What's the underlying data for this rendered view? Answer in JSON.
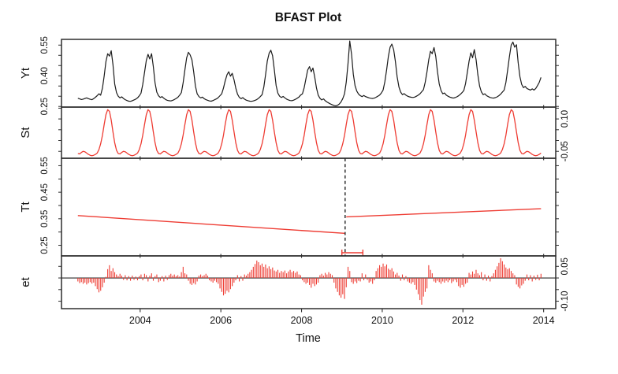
{
  "chart_data": {
    "type": "line",
    "title": "BFAST Plot",
    "xlabel": "Time",
    "x_ticks": [
      2004,
      2006,
      2008,
      2010,
      2012,
      2014
    ],
    "xlim": [
      2002.05,
      2014.3
    ],
    "x_start": 2002.4565,
    "samples_per_year": 23,
    "n_points": 265,
    "colors": {
      "observed": "#1b1b1b",
      "seasonal": "#ee3c33",
      "trend": "#ee3c33",
      "remainder": "#ee3c33",
      "frame": "#2d2d2d",
      "break_line": "#222222",
      "ci_bracket": "#ee3c33",
      "text": "#111111"
    },
    "panels": [
      {
        "id": "Yt",
        "label": "Yt",
        "series": "observed",
        "ylim": [
          0.247,
          0.578
        ],
        "tick_labels": [
          0.25,
          0.4,
          0.55
        ],
        "minor_tick_step": 0.05,
        "label_side": "left"
      },
      {
        "id": "St",
        "label": "St",
        "series": "seasonal",
        "ylim": [
          -0.082,
          0.155
        ],
        "tick_labels": [
          -0.05,
          0.1
        ],
        "minor_tick_step": 0.05,
        "label_side": "right"
      },
      {
        "id": "Tt",
        "label": "Tt",
        "series": "trend",
        "ylim": [
          0.21,
          0.578
        ],
        "tick_labels": [
          0.25,
          0.35,
          0.45,
          0.55
        ],
        "minor_tick_step": 0.05,
        "label_side": "left",
        "breakpoint": 2009.08,
        "break_ci": [
          2009.0,
          2009.52
        ]
      },
      {
        "id": "et",
        "label": "et",
        "series": "remainder",
        "ylim": [
          -0.132,
          0.095
        ],
        "tick_labels": [
          -0.1,
          0.05
        ],
        "minor_tick_step": 0.05,
        "label_side": "right",
        "zero_line": true
      }
    ],
    "trend_segments": [
      {
        "t0": 2002.4565,
        "v0": 0.362,
        "t1": 2009.065,
        "v1": 0.295
      },
      {
        "t0": 2009.108,
        "v0": 0.357,
        "t1": 2013.935,
        "v1": 0.388
      }
    ],
    "seasonal_phase_offset": 10,
    "seasonal_cycle_x1000": [
      -15,
      25,
      75,
      120,
      143,
      135,
      95,
      40,
      -10,
      -45,
      -60,
      -62,
      -55,
      -50,
      -52,
      -58,
      -64,
      -68,
      -70,
      -68,
      -64,
      -58,
      -42
    ],
    "observed_x1000": [
      290,
      287,
      284,
      286,
      289,
      292,
      288,
      285,
      283,
      288,
      295,
      303,
      312,
      305,
      340,
      400,
      470,
      508,
      496,
      522,
      455,
      360,
      318,
      300,
      292,
      297,
      289,
      283,
      279,
      276,
      275,
      278,
      282,
      286,
      292,
      302,
      315,
      358,
      418,
      475,
      505,
      482,
      508,
      445,
      365,
      320,
      302,
      294,
      298,
      290,
      284,
      280,
      278,
      277,
      280,
      284,
      289,
      295,
      305,
      318,
      365,
      430,
      488,
      515,
      502,
      478,
      420,
      350,
      312,
      298,
      292,
      296,
      288,
      283,
      280,
      277,
      276,
      279,
      283,
      287,
      293,
      303,
      312,
      340,
      375,
      405,
      420,
      398,
      412,
      380,
      340,
      310,
      295,
      288,
      293,
      286,
      281,
      278,
      276,
      275,
      277,
      280,
      284,
      290,
      298,
      308,
      345,
      405,
      472,
      510,
      525,
      498,
      430,
      352,
      315,
      300,
      294,
      299,
      292,
      286,
      282,
      279,
      278,
      281,
      285,
      290,
      296,
      306,
      312,
      342,
      385,
      428,
      445,
      420,
      438,
      395,
      340,
      305,
      290,
      282,
      287,
      278,
      272,
      267,
      262,
      258,
      255,
      253,
      256,
      262,
      272,
      288,
      312,
      370,
      460,
      570,
      505,
      408,
      352,
      325,
      310,
      303,
      298,
      304,
      298,
      295,
      292,
      290,
      289,
      291,
      295,
      300,
      306,
      316,
      330,
      370,
      430,
      495,
      540,
      555,
      528,
      470,
      395,
      345,
      320,
      308,
      313,
      305,
      300,
      297,
      295,
      294,
      296,
      300,
      305,
      312,
      322,
      332,
      368,
      420,
      478,
      520,
      508,
      538,
      495,
      420,
      360,
      328,
      312,
      316,
      306,
      300,
      296,
      293,
      291,
      293,
      297,
      302,
      309,
      318,
      328,
      362,
      415,
      472,
      512,
      488,
      528,
      478,
      405,
      350,
      322,
      308,
      312,
      303,
      298,
      294,
      292,
      291,
      293,
      297,
      303,
      310,
      320,
      330,
      368,
      428,
      492,
      550,
      565,
      540,
      552,
      462,
      395,
      358,
      342,
      348,
      338,
      334,
      330,
      336,
      330,
      338,
      352,
      368,
      392
    ],
    "remainder_x1000": [
      -15,
      -22,
      -18,
      -25,
      -20,
      -28,
      -22,
      -18,
      -24,
      -20,
      -35,
      -48,
      -62,
      -55,
      -40,
      -20,
      5,
      38,
      55,
      30,
      42,
      25,
      15,
      8,
      18,
      10,
      -8,
      12,
      -10,
      8,
      -12,
      10,
      -8,
      6,
      -10,
      8,
      15,
      -10,
      18,
      12,
      -15,
      10,
      20,
      -12,
      8,
      15,
      -18,
      -12,
      8,
      -15,
      10,
      -8,
      12,
      18,
      10,
      15,
      8,
      12,
      6,
      25,
      48,
      20,
      15,
      -12,
      -25,
      -30,
      -22,
      -28,
      -15,
      10,
      15,
      8,
      12,
      18,
      10,
      -10,
      -15,
      -20,
      -12,
      -18,
      -25,
      -45,
      -60,
      -75,
      -68,
      -55,
      -62,
      -48,
      -35,
      -20,
      -10,
      12,
      -15,
      8,
      -12,
      15,
      10,
      18,
      25,
      35,
      48,
      60,
      75,
      68,
      55,
      62,
      48,
      58,
      42,
      50,
      38,
      45,
      32,
      28,
      35,
      22,
      30,
      25,
      32,
      20,
      28,
      35,
      25,
      30,
      22,
      28,
      15,
      12,
      -10,
      -18,
      -25,
      -20,
      -30,
      -42,
      -25,
      -35,
      -28,
      -20,
      12,
      18,
      10,
      22,
      15,
      25,
      18,
      12,
      -20,
      -45,
      -60,
      -75,
      -85,
      -70,
      -90,
      -40,
      48,
      30,
      -18,
      -25,
      -15,
      -22,
      -12,
      -15,
      20,
      -10,
      15,
      -8,
      -20,
      -15,
      -25,
      -10,
      30,
      42,
      55,
      48,
      62,
      50,
      58,
      40,
      35,
      42,
      28,
      15,
      22,
      10,
      -12,
      15,
      -10,
      8,
      -15,
      -20,
      -25,
      -18,
      -30,
      -50,
      -70,
      -95,
      -115,
      -80,
      -60,
      -45,
      55,
      35,
      20,
      -15,
      -20,
      -12,
      -18,
      -25,
      -15,
      -20,
      -12,
      -18,
      -10,
      -22,
      -15,
      -8,
      -18,
      -35,
      -42,
      -30,
      -38,
      -25,
      -20,
      22,
      15,
      28,
      18,
      35,
      20,
      12,
      25,
      -10,
      15,
      -12,
      10,
      -15,
      8,
      20,
      35,
      50,
      65,
      85,
      72,
      58,
      45,
      38,
      42,
      30,
      20,
      12,
      -28,
      -38,
      -45,
      -32,
      -25,
      -12,
      15,
      -10,
      12,
      -15,
      10,
      -8,
      14,
      -10,
      18
    ]
  }
}
